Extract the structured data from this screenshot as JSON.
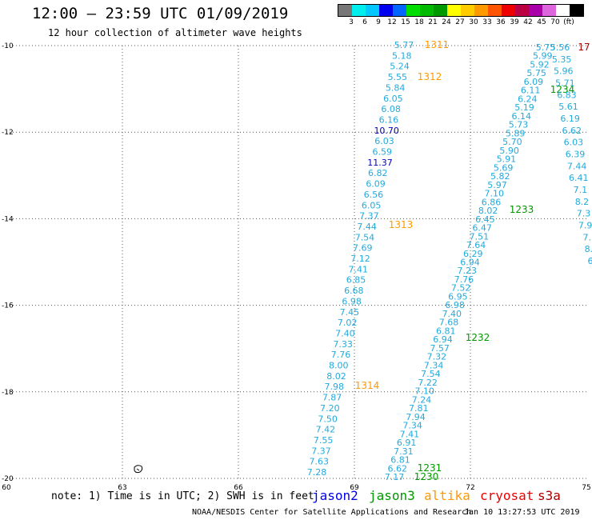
{
  "header": {
    "title": "12:00 — 23:59 UTC 01/09/2019",
    "subtitle": "12 hour collection of altimeter wave heights"
  },
  "colorbar": {
    "colors": [
      "#777777",
      "#00eeee",
      "#00c8ff",
      "#0000ee",
      "#0066ff",
      "#00dd00",
      "#00bb00",
      "#009900",
      "#ffff00",
      "#ffcc00",
      "#ff9900",
      "#ff5500",
      "#ee0000",
      "#bb0044",
      "#aa00aa",
      "#dd66dd",
      "#ffffff",
      "#000000"
    ],
    "labels": [
      "3",
      "6",
      "9",
      "12",
      "15",
      "18",
      "21",
      "24",
      "27",
      "30",
      "33",
      "36",
      "39",
      "42",
      "45",
      "70",
      "(ft)"
    ]
  },
  "axes": {
    "x_ticks": [
      "60",
      "63",
      "66",
      "69",
      "72",
      "75"
    ],
    "y_ticks": [
      "-10",
      "-12",
      "-14",
      "-16",
      "-18",
      "-20"
    ]
  },
  "map_data": {
    "tracks": [
      {
        "satellite": "altika",
        "labels": [
          "1311",
          "1312",
          "1313",
          "1314"
        ],
        "values": [
          "5.77",
          "5.18",
          "5.24",
          "5.55",
          "5.84",
          "6.05",
          "6.08",
          "6.16",
          "10.70",
          "6.03",
          "6.59",
          "11.37",
          "6.82",
          "6.09",
          "6.56",
          "6.05",
          "7.37",
          "7.44",
          "7.54",
          "7.69",
          "7.12",
          "7.41",
          "6.85",
          "6.68",
          "6.98",
          "7.45",
          "7.02",
          "7.40",
          "7.33",
          "7.76",
          "8.00",
          "8.02",
          "7.98",
          "7.87",
          "7.20",
          "7.50",
          "7.42",
          "7.55",
          "7.37",
          "7.63",
          "7.28"
        ]
      },
      {
        "satellite": "jason3",
        "labels": [
          "1230",
          "1231",
          "1232",
          "1233",
          "1234"
        ],
        "values": [
          "5.75",
          "5.99",
          "5.92",
          "5.75",
          "6.09",
          "6.11",
          "6.24",
          "5.19",
          "6.14",
          "5.73",
          "5.89",
          "5.70",
          "5.90",
          "5.91",
          "5.69",
          "5.82",
          "5.97",
          "7.10",
          "6.86",
          "8.02",
          "6.45",
          "6.47",
          "7.51",
          "7.64",
          "6.29",
          "6.94",
          "7.23",
          "7.76",
          "7.52",
          "6.95",
          "6.98",
          "7.40",
          "7.68",
          "6.81",
          "6.94",
          "7.57",
          "7.32",
          "7.34",
          "7.54",
          "7.22",
          "7.10",
          "7.24",
          "7.81",
          "7.94",
          "7.34",
          "7.41",
          "6.91",
          "7.31",
          "6.81",
          "6.62",
          "7.17"
        ]
      },
      {
        "satellite": "jason3-east",
        "values": [
          "5.56",
          "5.35",
          "5.96",
          "5.71",
          "6.83",
          "5.61",
          "6.19",
          "6.62",
          "6.03",
          "6.39",
          "7.44",
          "6.41",
          "7.1",
          "8.2",
          "7.3",
          "7.9",
          "7.",
          "8.",
          "6"
        ]
      }
    ],
    "edge_labels": [
      "17"
    ],
    "island_marker": "reunion-island"
  },
  "footer": {
    "note": "note: 1) Time is in UTC; 2) SWH is in feet",
    "satellites": [
      {
        "name": "jason2",
        "color": "#0000ee"
      },
      {
        "name": "jason3",
        "color": "#009900"
      },
      {
        "name": "altika",
        "color": "#ff9900"
      },
      {
        "name": "cryosat",
        "color": "#ee0000"
      },
      {
        "name": "s3a",
        "color": "#aa0000"
      }
    ],
    "credit": "NOAA/NESDIS Center for Satellite Applications and Research",
    "timestamp": "Jan 10 13:27:53 UTC 2019"
  }
}
